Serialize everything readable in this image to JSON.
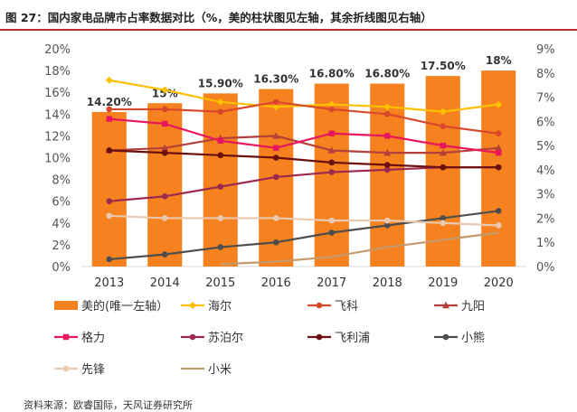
{
  "title": "图 27：国内家电品牌市占率数据对比（%，美的柱状图见左轴，其余折线图见右轴）",
  "source": "资料来源：欧睿国际，天风证券研究所",
  "chart_data": {
    "type": "bar+line",
    "categories": [
      "2013",
      "2014",
      "2015",
      "2016",
      "2017",
      "2018",
      "2019",
      "2020"
    ],
    "left_axis": {
      "min": 0,
      "max": 20,
      "step": 2,
      "suffix": "%"
    },
    "right_axis": {
      "min": 0,
      "max": 9,
      "step": 1,
      "suffix": "%"
    },
    "bar_series": {
      "name": "美的(唯一左轴）",
      "color": "#f5811f",
      "values": [
        14.2,
        15.0,
        15.9,
        16.3,
        16.8,
        16.8,
        17.5,
        18.0
      ],
      "labels": [
        "14.20%",
        "15%",
        "15.90%",
        "16.30%",
        "16.80%",
        "16.80%",
        "17.50%",
        "18%"
      ]
    },
    "line_series": [
      {
        "name": "海尔",
        "color": "#ffc000",
        "marker": "diamond",
        "values": [
          7.7,
          7.3,
          6.8,
          6.6,
          6.7,
          6.6,
          6.4,
          6.7
        ]
      },
      {
        "name": "飞科",
        "color": "#d9482b",
        "marker": "circle",
        "values": [
          6.5,
          6.5,
          6.4,
          6.8,
          6.5,
          6.3,
          5.8,
          5.5
        ]
      },
      {
        "name": "九阳",
        "color": "#b5403a",
        "marker": "triangle",
        "values": [
          4.8,
          4.9,
          5.3,
          5.4,
          4.8,
          4.7,
          4.7,
          4.9
        ]
      },
      {
        "name": "格力",
        "color": "#e8175d",
        "marker": "square",
        "values": [
          6.1,
          5.9,
          5.2,
          4.9,
          5.5,
          5.4,
          5.0,
          4.7
        ]
      },
      {
        "name": "苏泊尔",
        "color": "#9c2a4e",
        "marker": "circle",
        "values": [
          2.7,
          2.9,
          3.3,
          3.7,
          3.9,
          4.0,
          4.1,
          4.1
        ]
      },
      {
        "name": "飞利浦",
        "color": "#6b0f0f",
        "marker": "circle",
        "values": [
          4.8,
          4.7,
          4.6,
          4.5,
          4.3,
          4.2,
          4.1,
          4.1
        ]
      },
      {
        "name": "小熊",
        "color": "#4d4d4d",
        "marker": "circle",
        "values": [
          0.3,
          0.5,
          0.8,
          1.0,
          1.4,
          1.7,
          2.0,
          2.3
        ]
      },
      {
        "name": "先锋",
        "color": "#e9c9b0",
        "marker": "circle",
        "values": [
          2.1,
          2.0,
          2.0,
          2.0,
          1.9,
          1.9,
          1.8,
          1.7
        ]
      },
      {
        "name": "小米",
        "color": "#c49a6c",
        "marker": "none",
        "values": [
          null,
          null,
          0.1,
          0.2,
          0.4,
          0.8,
          1.1,
          1.4
        ]
      }
    ]
  }
}
